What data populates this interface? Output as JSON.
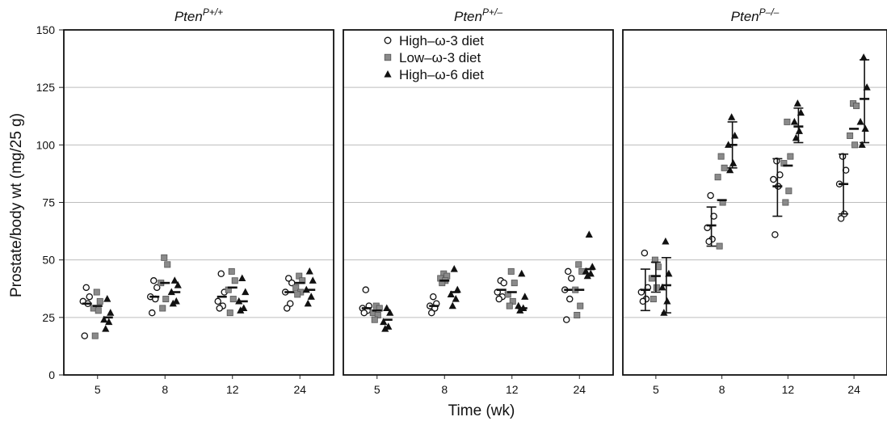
{
  "chart_data": {
    "type": "scatter",
    "ylabel": "Prostate/body wt (mg/25 g)",
    "xlabel": "Time (wk)",
    "ylim": [
      0,
      150
    ],
    "yticks": [
      0,
      25,
      50,
      75,
      100,
      125,
      150
    ],
    "categories": [
      "5",
      "8",
      "12",
      "24"
    ],
    "grid": true,
    "legend": {
      "placement": "top-center of middle panel",
      "entries": [
        {
          "name": "High–ω-3 diet",
          "marker": "open-circle"
        },
        {
          "name": "Low–ω-3 diet",
          "marker": "gray-square"
        },
        {
          "name": "High–ω-6 diet",
          "marker": "black-triangle"
        }
      ]
    },
    "panels": [
      {
        "title_base": "Pten",
        "title_sup": "P+/+",
        "groups": [
          {
            "time": "5",
            "series": [
              {
                "name": "High–ω-3 diet",
                "points": [
                  38,
                  34,
                  32,
                  31,
                  17
                ],
                "mean": 31
              },
              {
                "name": "Low–ω-3 diet",
                "points": [
                  36,
                  32,
                  29,
                  28,
                  17
                ],
                "mean": 30
              },
              {
                "name": "High–ω-6 diet",
                "points": [
                  33,
                  27,
                  24,
                  23,
                  20
                ],
                "mean": 25
              }
            ]
          },
          {
            "time": "8",
            "series": [
              {
                "name": "High–ω-3 diet",
                "points": [
                  41,
                  38,
                  34,
                  33,
                  27
                ],
                "mean": 34
              },
              {
                "name": "Low–ω-3 diet",
                "points": [
                  51,
                  48,
                  40,
                  33,
                  29
                ],
                "mean": 40
              },
              {
                "name": "High–ω-6 diet",
                "points": [
                  41,
                  39,
                  36,
                  32,
                  31
                ],
                "mean": 36
              }
            ]
          },
          {
            "time": "12",
            "series": [
              {
                "name": "High–ω-3 diet",
                "points": [
                  44,
                  36,
                  32,
                  30,
                  29
                ],
                "mean": 34
              },
              {
                "name": "Low–ω-3 diet",
                "points": [
                  45,
                  41,
                  37,
                  33,
                  27
                ],
                "mean": 38
              },
              {
                "name": "High–ω-6 diet",
                "points": [
                  42,
                  36,
                  32,
                  29,
                  28
                ],
                "mean": 32
              }
            ]
          },
          {
            "time": "24",
            "series": [
              {
                "name": "High–ω-3 diet",
                "points": [
                  42,
                  40,
                  36,
                  31,
                  29
                ],
                "mean": 36
              },
              {
                "name": "Low–ω-3 diet",
                "points": [
                  43,
                  41,
                  38,
                  36,
                  35
                ],
                "mean": 40
              },
              {
                "name": "High–ω-6 diet",
                "points": [
                  45,
                  41,
                  37,
                  34,
                  31
                ],
                "mean": 37
              }
            ]
          }
        ]
      },
      {
        "title_base": "Pten",
        "title_sup": "P+/–",
        "groups": [
          {
            "time": "5",
            "series": [
              {
                "name": "High–ω-3 diet",
                "points": [
                  37,
                  30,
                  29,
                  28,
                  27
                ],
                "mean": 29
              },
              {
                "name": "Low–ω-3 diet",
                "points": [
                  30,
                  29,
                  27,
                  26,
                  24
                ],
                "mean": 28
              },
              {
                "name": "High–ω-6 diet",
                "points": [
                  29,
                  27,
                  23,
                  21,
                  20
                ],
                "mean": 24
              }
            ]
          },
          {
            "time": "8",
            "series": [
              {
                "name": "High–ω-3 diet",
                "points": [
                  34,
                  31,
                  30,
                  29,
                  27
                ],
                "mean": 30
              },
              {
                "name": "Low–ω-3 diet",
                "points": [
                  44,
                  43,
                  42,
                  41,
                  40
                ],
                "mean": 41
              },
              {
                "name": "High–ω-6 diet",
                "points": [
                  46,
                  37,
                  35,
                  33,
                  30
                ],
                "mean": 36
              }
            ]
          },
          {
            "time": "12",
            "series": [
              {
                "name": "High–ω-3 diet",
                "points": [
                  41,
                  40,
                  36,
                  34,
                  33
                ],
                "mean": 37
              },
              {
                "name": "Low–ω-3 diet",
                "points": [
                  45,
                  40,
                  35,
                  32,
                  30
                ],
                "mean": 36
              },
              {
                "name": "High–ω-6 diet",
                "points": [
                  44,
                  34,
                  30,
                  29,
                  28
                ],
                "mean": 29
              }
            ]
          },
          {
            "time": "24",
            "series": [
              {
                "name": "High–ω-3 diet",
                "points": [
                  45,
                  42,
                  37,
                  33,
                  24
                ],
                "mean": 37
              },
              {
                "name": "Low–ω-3 diet",
                "points": [
                  48,
                  45,
                  37,
                  30,
                  26
                ],
                "mean": 37
              },
              {
                "name": "High–ω-6 diet",
                "points": [
                  61,
                  47,
                  45,
                  44,
                  43
                ],
                "mean": 46
              }
            ]
          }
        ]
      },
      {
        "title_base": "Pten",
        "title_sup": "P–/–",
        "groups": [
          {
            "time": "5",
            "series": [
              {
                "name": "High–ω-3 diet",
                "points": [
                  53,
                  38,
                  36,
                  33,
                  32
                ],
                "mean": 37,
                "err": [
                  28,
                  46
                ]
              },
              {
                "name": "Low–ω-3 diet",
                "points": [
                  50,
                  47,
                  42,
                  38,
                  33
                ],
                "mean": 43,
                "err": [
                  36,
                  49
                ]
              },
              {
                "name": "High–ω-6 diet",
                "points": [
                  58,
                  44,
                  38,
                  32,
                  27
                ],
                "mean": 39,
                "err": [
                  27,
                  51
                ]
              }
            ]
          },
          {
            "time": "8",
            "series": [
              {
                "name": "High–ω-3 diet",
                "points": [
                  78,
                  69,
                  64,
                  59,
                  58
                ],
                "mean": 65,
                "err": [
                  56,
                  73
                ]
              },
              {
                "name": "Low–ω-3 diet",
                "points": [
                  95,
                  90,
                  86,
                  75,
                  56
                ],
                "mean": 76
              },
              {
                "name": "High–ω-6 diet",
                "points": [
                  112,
                  104,
                  100,
                  92,
                  89
                ],
                "mean": 100,
                "err": [
                  90,
                  110
                ]
              }
            ]
          },
          {
            "time": "12",
            "series": [
              {
                "name": "High–ω-3 diet",
                "points": [
                  93,
                  87,
                  85,
                  82,
                  61
                ],
                "mean": 82,
                "err": [
                  69,
                  94
                ]
              },
              {
                "name": "Low–ω-3 diet",
                "points": [
                  110,
                  95,
                  92,
                  80,
                  75
                ],
                "mean": 91
              },
              {
                "name": "High–ω-6 diet",
                "points": [
                  118,
                  114,
                  110,
                  106,
                  103
                ],
                "mean": 108,
                "err": [
                  101,
                  116
                ]
              }
            ]
          },
          {
            "time": "24",
            "series": [
              {
                "name": "High–ω-3 diet",
                "points": [
                  95,
                  89,
                  83,
                  70,
                  68
                ],
                "mean": 83,
                "err": [
                  70,
                  96
                ]
              },
              {
                "name": "Low–ω-3 diet",
                "points": [
                  118,
                  117,
                  104,
                  100
                ],
                "mean": 107
              },
              {
                "name": "High–ω-6 diet",
                "points": [
                  138,
                  125,
                  110,
                  107,
                  100
                ],
                "mean": 120,
                "err": [
                  101,
                  137
                ]
              }
            ]
          }
        ]
      }
    ]
  }
}
